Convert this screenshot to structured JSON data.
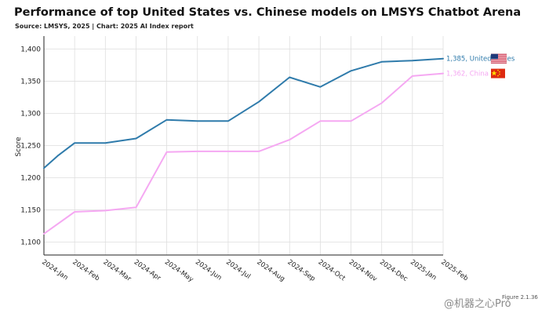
{
  "chart_data": {
    "type": "line",
    "title": "Performance of top United States vs. Chinese models on LMSYS Chatbot Arena",
    "subtitle": "Source: LMSYS, 2025 | Chart: 2025 AI Index report",
    "xlabel": "",
    "ylabel": "Score",
    "ylim": [
      1080,
      1420
    ],
    "yticks": [
      1100,
      1150,
      1200,
      1250,
      1300,
      1350,
      1400
    ],
    "ytick_labels": [
      "1,100",
      "1,150",
      "1,200",
      "1,250",
      "1,300",
      "1,350",
      "1,400"
    ],
    "categories": [
      "2024-Jan",
      "2024-Feb",
      "2024-Mar",
      "2024-Apr",
      "2024-May",
      "2024-Jun",
      "2024-Jul",
      "2024-Aug",
      "2024-Sep",
      "2024-Oct",
      "2024-Nov",
      "2024-Dec",
      "2025-Jan",
      "2025-Feb"
    ],
    "grid": true,
    "legend": "end-labels",
    "series": [
      {
        "name": "United States",
        "color": "#2f7bab",
        "end_label": "1,385, United States",
        "icon": "us-flag-icon",
        "points": [
          [
            0,
            1215
          ],
          [
            0.45,
            1234
          ],
          [
            1,
            1254
          ],
          [
            2,
            1254
          ],
          [
            3,
            1261
          ],
          [
            4,
            1290
          ],
          [
            5,
            1288
          ],
          [
            6,
            1288
          ],
          [
            7,
            1318
          ],
          [
            8,
            1356
          ],
          [
            9,
            1341
          ],
          [
            10,
            1366
          ],
          [
            11,
            1380
          ],
          [
            12,
            1382
          ],
          [
            13,
            1385
          ]
        ]
      },
      {
        "name": "China",
        "color": "#f5a8f2",
        "end_label": "1,362, China",
        "icon": "china-flag-icon",
        "points": [
          [
            0,
            1113
          ],
          [
            1,
            1147
          ],
          [
            2,
            1149
          ],
          [
            3,
            1154
          ],
          [
            4,
            1240
          ],
          [
            5,
            1241
          ],
          [
            6,
            1241
          ],
          [
            7,
            1241
          ],
          [
            8,
            1259
          ],
          [
            9,
            1288
          ],
          [
            10,
            1288
          ],
          [
            11,
            1316
          ],
          [
            12,
            1358
          ],
          [
            13,
            1362
          ]
        ]
      }
    ]
  },
  "figure_label": "Figure 2.1.36",
  "watermark": "@机器之心Pro"
}
